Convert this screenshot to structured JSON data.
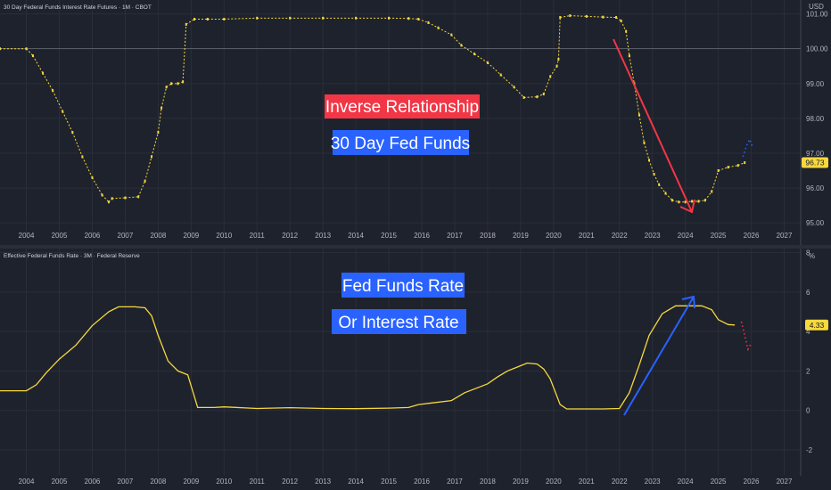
{
  "chart_data": [
    {
      "type": "line",
      "title": "30 Day Federal Funds Interest Rate Futures · 1M · CBOT",
      "currency": "USD",
      "ylim": [
        94.8,
        101.4
      ],
      "y_ticks": [
        95.0,
        96.0,
        97.0,
        98.0,
        99.0,
        100.0,
        101.0
      ],
      "y_tick_labels": [
        "95.00",
        "96.00",
        "97.00",
        "98.00",
        "99.00",
        "100.00",
        "101.00"
      ],
      "reference_line": 100.0,
      "current_value": 96.73,
      "current_label": "96.73",
      "series": [
        {
          "x": [
            2003.2,
            2004.0,
            2004.2,
            2004.5,
            2004.8,
            2005.1,
            2005.4,
            2005.7,
            2006.0,
            2006.3,
            2006.5,
            2006.6,
            2007.0,
            2007.4,
            2007.6,
            2007.8,
            2008.0,
            2008.1,
            2008.25,
            2008.4,
            2008.6,
            2008.75,
            2008.85,
            2009.1,
            2009.5,
            2010.0,
            2011.0,
            2012.0,
            2013.0,
            2014.0,
            2015.0,
            2015.6,
            2015.9,
            2016.2,
            2016.5,
            2016.9,
            2017.2,
            2017.6,
            2018.0,
            2018.4,
            2018.8,
            2019.1,
            2019.5,
            2019.7,
            2019.9,
            2020.1,
            2020.15,
            2020.2,
            2020.5,
            2021.0,
            2021.5,
            2021.9,
            2022.05,
            2022.2,
            2022.3,
            2022.45,
            2022.6,
            2022.75,
            2022.9,
            2023.05,
            2023.2,
            2023.4,
            2023.6,
            2023.8,
            2024.0,
            2024.2,
            2024.4,
            2024.6,
            2024.8,
            2025.0,
            2025.3,
            2025.6,
            2025.8
          ],
          "values": [
            100.0,
            100.0,
            99.8,
            99.3,
            98.8,
            98.2,
            97.6,
            96.9,
            96.3,
            95.8,
            95.6,
            95.7,
            95.72,
            95.75,
            96.2,
            96.9,
            97.6,
            98.3,
            98.9,
            99.0,
            99.0,
            99.05,
            100.7,
            100.85,
            100.85,
            100.85,
            100.88,
            100.88,
            100.88,
            100.88,
            100.88,
            100.87,
            100.85,
            100.75,
            100.6,
            100.4,
            100.1,
            99.85,
            99.6,
            99.25,
            98.9,
            98.6,
            98.62,
            98.7,
            99.2,
            99.5,
            99.7,
            100.9,
            100.95,
            100.93,
            100.91,
            100.9,
            100.8,
            100.5,
            99.8,
            99.0,
            98.1,
            97.3,
            96.8,
            96.4,
            96.1,
            95.85,
            95.65,
            95.6,
            95.6,
            95.62,
            95.62,
            95.65,
            95.9,
            96.5,
            96.6,
            96.65,
            96.73
          ],
          "forecast_x": [
            2025.75,
            2025.85,
            2025.95,
            2026.05
          ],
          "forecast_values": [
            96.9,
            97.2,
            97.4,
            97.15
          ]
        }
      ],
      "annotations": [
        "Inverse Relationship",
        "30 Day Fed Funds"
      ]
    },
    {
      "type": "line",
      "title": "Effective Federal Funds Rate · 3M · Federal Reserve",
      "unit": "%",
      "ylim": [
        -2.9,
        8.2
      ],
      "y_ticks": [
        -2,
        0,
        2,
        4,
        6,
        8
      ],
      "y_tick_labels": [
        "-2",
        "0",
        "2",
        "4",
        "6",
        "8"
      ],
      "current_value": 4.33,
      "current_label": "4.33",
      "series": [
        {
          "x": [
            2003.2,
            2004.0,
            2004.3,
            2004.6,
            2005.0,
            2005.5,
            2006.0,
            2006.5,
            2006.8,
            2007.3,
            2007.6,
            2007.8,
            2008.0,
            2008.3,
            2008.6,
            2008.9,
            2009.2,
            2009.7,
            2010.0,
            2011.0,
            2012.0,
            2013.0,
            2014.0,
            2015.0,
            2015.6,
            2015.9,
            2016.3,
            2016.9,
            2017.3,
            2017.7,
            2018.0,
            2018.3,
            2018.6,
            2018.9,
            2019.2,
            2019.5,
            2019.7,
            2019.9,
            2020.2,
            2020.4,
            2021.0,
            2021.5,
            2022.0,
            2022.3,
            2022.6,
            2022.9,
            2023.3,
            2023.7,
            2024.0,
            2024.5,
            2024.8,
            2025.0,
            2025.3,
            2025.5
          ],
          "values": [
            1.0,
            1.0,
            1.3,
            1.9,
            2.6,
            3.3,
            4.3,
            5.0,
            5.25,
            5.25,
            5.2,
            4.8,
            3.8,
            2.5,
            2.0,
            1.8,
            0.15,
            0.15,
            0.18,
            0.1,
            0.14,
            0.1,
            0.09,
            0.12,
            0.15,
            0.3,
            0.38,
            0.5,
            0.9,
            1.15,
            1.35,
            1.7,
            2.0,
            2.2,
            2.4,
            2.35,
            2.1,
            1.6,
            0.3,
            0.08,
            0.08,
            0.08,
            0.1,
            0.9,
            2.3,
            3.8,
            4.9,
            5.3,
            5.3,
            5.3,
            5.1,
            4.6,
            4.35,
            4.33
          ],
          "forecast_x": [
            2025.7,
            2025.8,
            2025.9,
            2026.0
          ],
          "forecast_values": [
            4.5,
            3.8,
            3.1,
            3.4
          ]
        }
      ],
      "annotations": [
        "Fed Funds Rate",
        "Or Interest Rate"
      ]
    }
  ],
  "x_axis": {
    "range": [
      2003.2,
      2027.5
    ],
    "ticks": [
      2004,
      2005,
      2006,
      2007,
      2008,
      2009,
      2010,
      2011,
      2012,
      2013,
      2014,
      2015,
      2016,
      2017,
      2018,
      2019,
      2020,
      2021,
      2022,
      2023,
      2024,
      2025,
      2026,
      2027
    ],
    "tick_labels": [
      "2004",
      "2005",
      "2006",
      "2007",
      "2008",
      "2009",
      "2010",
      "2011",
      "2012",
      "2013",
      "2014",
      "2015",
      "2016",
      "2017",
      "2018",
      "2019",
      "2020",
      "2021",
      "2022",
      "2023",
      "2024",
      "2025",
      "2026",
      "2027"
    ]
  },
  "colors": {
    "background": "#1e222d",
    "grid": "#2a2e39",
    "price_line": "#f7d93c",
    "annotation_red": "#f23645",
    "annotation_blue": "#2962ff",
    "forecast_blue": "#2962ff",
    "forecast_red": "#f23645",
    "text": "#d1d4dc",
    "reference": "#787b86"
  }
}
